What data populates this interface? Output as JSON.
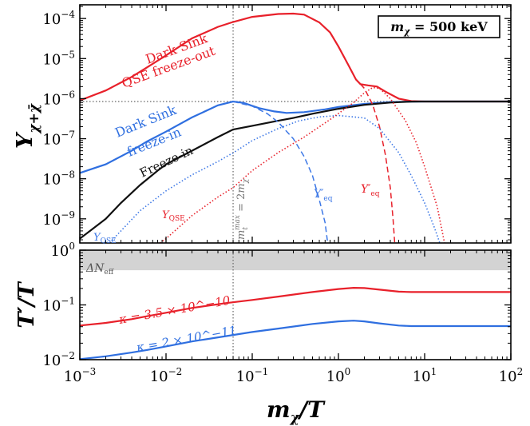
{
  "chart_data": [
    {
      "panel": "top",
      "type": "line",
      "xscale": "log",
      "yscale": "log",
      "xlim": [
        0.001,
        100
      ],
      "ylim": [
        2.5e-10,
        0.00022
      ],
      "ylabel": "Y_{χ+χ̄}",
      "y_ticks": [
        {
          "value": 1e-09,
          "base": "10",
          "exp": "−9"
        },
        {
          "value": 1e-08,
          "base": "10",
          "exp": "−8"
        },
        {
          "value": 1e-07,
          "base": "10",
          "exp": "−7"
        },
        {
          "value": 1e-06,
          "base": "10",
          "exp": "−6"
        },
        {
          "value": 1e-05,
          "base": "10",
          "exp": "−5"
        },
        {
          "value": 0.0001,
          "base": "10",
          "exp": "−4"
        }
      ],
      "reference_lines": {
        "x_vline": 0.06,
        "y_hline": 8.5e-07
      },
      "legend_box": {
        "label": "m_χ = 500 keV",
        "placement": "top-right"
      },
      "series": [
        {
          "name": "Dark Sink QSE freeze-out",
          "color": "#e8202a",
          "style": "solid",
          "points": [
            [
              0.001,
              9e-07
            ],
            [
              0.002,
              1.6e-06
            ],
            [
              0.004,
              3.5e-06
            ],
            [
              0.006,
              6e-06
            ],
            [
              0.01,
              1.2e-05
            ],
            [
              0.02,
              3.2e-05
            ],
            [
              0.04,
              6.2e-05
            ],
            [
              0.06,
              8.2e-05
            ],
            [
              0.1,
              0.00011
            ],
            [
              0.2,
              0.00013
            ],
            [
              0.3,
              0.000133
            ],
            [
              0.4,
              0.000125
            ],
            [
              0.6,
              8e-05
            ],
            [
              0.8,
              4.5e-05
            ],
            [
              1,
              2e-05
            ],
            [
              1.3,
              7e-06
            ],
            [
              1.6,
              3e-06
            ],
            [
              1.8,
              2.3e-06
            ],
            [
              2.2,
              2.15e-06
            ],
            [
              2.8,
              2e-06
            ],
            [
              3.5,
              1.5e-06
            ],
            [
              5,
              1e-06
            ],
            [
              7,
              8.7e-07
            ],
            [
              10,
              8.5e-07
            ],
            [
              100,
              8.5e-07
            ]
          ]
        },
        {
          "name": "Dark Sink freeze-in",
          "color": "#2f6fe0",
          "style": "solid",
          "points": [
            [
              0.001,
              1.4e-08
            ],
            [
              0.002,
              2.3e-08
            ],
            [
              0.004,
              5e-08
            ],
            [
              0.006,
              8.5e-08
            ],
            [
              0.01,
              1.5e-07
            ],
            [
              0.02,
              3.4e-07
            ],
            [
              0.04,
              6.8e-07
            ],
            [
              0.06,
              8.5e-07
            ],
            [
              0.08,
              7.8e-07
            ],
            [
              0.12,
              5.8e-07
            ],
            [
              0.18,
              4.8e-07
            ],
            [
              0.25,
              4.4e-07
            ],
            [
              0.4,
              4.6e-07
            ],
            [
              0.7,
              5.4e-07
            ],
            [
              1,
              6.2e-07
            ],
            [
              2,
              7.4e-07
            ],
            [
              4,
              8.2e-07
            ],
            [
              7,
              8.45e-07
            ],
            [
              10,
              8.5e-07
            ],
            [
              100,
              8.5e-07
            ]
          ]
        },
        {
          "name": "Freeze-in",
          "color": "#111111",
          "style": "solid",
          "points": [
            [
              0.001,
              3.2e-10
            ],
            [
              0.002,
              1e-09
            ],
            [
              0.003,
              2.5e-09
            ],
            [
              0.005,
              7e-09
            ],
            [
              0.008,
              1.6e-08
            ],
            [
              0.01,
              2.3e-08
            ],
            [
              0.02,
              5e-08
            ],
            [
              0.04,
              1.1e-07
            ],
            [
              0.06,
              1.7e-07
            ],
            [
              0.1,
              2.1e-07
            ],
            [
              0.2,
              2.8e-07
            ],
            [
              0.3,
              3.3e-07
            ],
            [
              0.5,
              4.2e-07
            ],
            [
              1,
              5.6e-07
            ],
            [
              2,
              7e-07
            ],
            [
              4,
              8e-07
            ],
            [
              7,
              8.45e-07
            ],
            [
              10,
              8.5e-07
            ],
            [
              100,
              8.5e-07
            ]
          ]
        },
        {
          "name": "Y'_eq (blue)",
          "color": "#3d78e6",
          "style": "dashed",
          "points": [
            [
              0.06,
              8.5e-07
            ],
            [
              0.1,
              6.5e-07
            ],
            [
              0.15,
              4.2e-07
            ],
            [
              0.2,
              2.6e-07
            ],
            [
              0.3,
              1e-07
            ],
            [
              0.4,
              3.6e-08
            ],
            [
              0.5,
              1.2e-08
            ],
            [
              0.6,
              3e-09
            ],
            [
              0.7,
              8e-10
            ],
            [
              0.75,
              2.5e-10
            ]
          ]
        },
        {
          "name": "Y'_eq (red)",
          "color": "#e8202a",
          "style": "dashed",
          "points": [
            [
              1.8,
              2.3e-06
            ],
            [
              2,
              1.8e-06
            ],
            [
              2.5,
              7e-07
            ],
            [
              3,
              2e-07
            ],
            [
              3.5,
              4e-08
            ],
            [
              4,
              6e-09
            ],
            [
              4.3,
              1e-09
            ],
            [
              4.5,
              2.5e-10
            ]
          ]
        },
        {
          "name": "Y_QSE (blue)",
          "color": "#3d78e6",
          "style": "dotted",
          "points": [
            [
              0.0022,
              2.5e-10
            ],
            [
              0.003,
              5e-10
            ],
            [
              0.005,
              1.6e-09
            ],
            [
              0.01,
              5e-09
            ],
            [
              0.02,
              1.25e-08
            ],
            [
              0.04,
              2.7e-08
            ],
            [
              0.055,
              4e-08
            ],
            [
              0.06,
              4.4e-08
            ],
            [
              0.1,
              9e-08
            ],
            [
              0.2,
              1.8e-07
            ],
            [
              0.35,
              2.8e-07
            ],
            [
              0.6,
              3.5e-07
            ],
            [
              1,
              3.8e-07
            ],
            [
              2,
              3.3e-07
            ],
            [
              3,
              1.8e-07
            ],
            [
              5,
              4.5e-08
            ],
            [
              7,
              1.2e-08
            ],
            [
              10,
              2.5e-09
            ],
            [
              13,
              6e-10
            ],
            [
              15,
              2.5e-10
            ]
          ]
        },
        {
          "name": "Y_QSE (red)",
          "color": "#e8202a",
          "style": "dotted",
          "points": [
            [
              0.0085,
              2.5e-10
            ],
            [
              0.01,
              3.2e-10
            ],
            [
              0.02,
              1.2e-09
            ],
            [
              0.04,
              3.5e-09
            ],
            [
              0.06,
              6e-09
            ],
            [
              0.1,
              1.6e-08
            ],
            [
              0.2,
              4.5e-08
            ],
            [
              0.4,
              1.1e-07
            ],
            [
              0.8,
              3e-07
            ],
            [
              1.5,
              8e-07
            ],
            [
              2,
              1.4e-06
            ],
            [
              2.5,
              1.9e-06
            ],
            [
              3,
              1.8e-06
            ],
            [
              4,
              1e-06
            ],
            [
              6,
              2.8e-07
            ],
            [
              8,
              8e-08
            ],
            [
              10,
              2e-08
            ],
            [
              14,
              2e-09
            ],
            [
              17,
              2.5e-10
            ]
          ]
        }
      ],
      "annotations": [
        {
          "text": "Dark Sink",
          "color": "#e8202a"
        },
        {
          "text": "QSE freeze-out",
          "color": "#e8202a"
        },
        {
          "text": "Dark Sink",
          "color": "#2f6fe0"
        },
        {
          "text": "freeze-in",
          "color": "#2f6fe0"
        },
        {
          "text": "Freeze-in",
          "color": "#111111"
        },
        {
          "text": "Y_QSE",
          "color": "#3d78e6"
        },
        {
          "text": "Y_QSE",
          "color": "#e8202a"
        },
        {
          "text": "Y'_eq",
          "color": "#3d78e6"
        },
        {
          "text": "Y'_eq",
          "color": "#e8202a"
        },
        {
          "text": "m_t^max = 2m_χ",
          "color": "#777777"
        }
      ]
    },
    {
      "panel": "bottom",
      "type": "line",
      "xscale": "log",
      "yscale": "log",
      "xlim": [
        0.001,
        100
      ],
      "ylim": [
        0.01,
        1
      ],
      "xlabel": "m_χ/T",
      "ylabel": "T'/T",
      "x_ticks": [
        {
          "value": 0.001,
          "base": "10",
          "exp": "−3"
        },
        {
          "value": 0.01,
          "base": "10",
          "exp": "−2"
        },
        {
          "value": 0.1,
          "base": "10",
          "exp": "−1"
        },
        {
          "value": 1,
          "base": "10",
          "exp": "0"
        },
        {
          "value": 10,
          "base": "10",
          "exp": "1"
        },
        {
          "value": 100,
          "base": "10",
          "exp": "2"
        }
      ],
      "y_ticks": [
        {
          "value": 0.01,
          "base": "10",
          "exp": "−2"
        },
        {
          "value": 0.1,
          "base": "10",
          "exp": "−1"
        },
        {
          "value": 1,
          "base": "10",
          "exp": "0"
        }
      ],
      "excluded_band": {
        "label": "ΔN_eff",
        "from": 0.43,
        "to": 1,
        "color": "#d3d3d3"
      },
      "series": [
        {
          "name": "κ = 3.5 × 10^−10",
          "color": "#e8202a",
          "style": "solid",
          "points": [
            [
              0.001,
              0.042
            ],
            [
              0.002,
              0.047
            ],
            [
              0.004,
              0.055
            ],
            [
              0.006,
              0.062
            ],
            [
              0.01,
              0.072
            ],
            [
              0.02,
              0.088
            ],
            [
              0.05,
              0.108
            ],
            [
              0.1,
              0.123
            ],
            [
              0.2,
              0.142
            ],
            [
              0.5,
              0.172
            ],
            [
              1,
              0.195
            ],
            [
              1.5,
              0.205
            ],
            [
              2,
              0.203
            ],
            [
              3,
              0.19
            ],
            [
              5,
              0.175
            ],
            [
              7,
              0.172
            ],
            [
              10,
              0.172
            ],
            [
              100,
              0.172
            ]
          ]
        },
        {
          "name": "κ = 2 × 10^−11",
          "color": "#2f6fe0",
          "style": "solid",
          "points": [
            [
              0.001,
              0.0102
            ],
            [
              0.002,
              0.0115
            ],
            [
              0.004,
              0.0135
            ],
            [
              0.006,
              0.015
            ],
            [
              0.01,
              0.0175
            ],
            [
              0.02,
              0.0215
            ],
            [
              0.05,
              0.027
            ],
            [
              0.1,
              0.032
            ],
            [
              0.2,
              0.037
            ],
            [
              0.5,
              0.045
            ],
            [
              1,
              0.05
            ],
            [
              1.5,
              0.0515
            ],
            [
              2,
              0.05
            ],
            [
              3,
              0.046
            ],
            [
              5,
              0.042
            ],
            [
              7,
              0.041
            ],
            [
              10,
              0.041
            ],
            [
              100,
              0.041
            ]
          ]
        }
      ],
      "annotations": [
        {
          "text": "κ = 3.5 × 10^−10",
          "color": "#e8202a"
        },
        {
          "text": "κ = 2 × 10^−11",
          "color": "#2f6fe0"
        }
      ]
    }
  ]
}
